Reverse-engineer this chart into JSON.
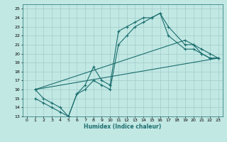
{
  "xlabel": "Humidex (Indice chaleur)",
  "xlim": [
    -0.5,
    23.5
  ],
  "ylim": [
    13,
    25.5
  ],
  "xticks": [
    0,
    1,
    2,
    3,
    4,
    5,
    6,
    7,
    8,
    9,
    10,
    11,
    12,
    13,
    14,
    15,
    16,
    17,
    18,
    19,
    20,
    21,
    22,
    23
  ],
  "yticks": [
    13,
    14,
    15,
    16,
    17,
    18,
    19,
    20,
    21,
    22,
    23,
    24,
    25
  ],
  "bg_color": "#c2e8e4",
  "grid_color": "#a0ccc8",
  "line_color": "#1a6e6e",
  "line1_x": [
    1,
    2,
    3,
    4,
    5,
    6,
    7,
    8,
    9,
    10,
    11,
    12,
    13,
    14,
    15,
    16,
    17,
    19,
    20,
    21,
    22,
    23
  ],
  "line1_y": [
    16,
    15,
    14.5,
    14,
    13,
    15.5,
    16.5,
    18.5,
    17,
    16.5,
    22.5,
    23,
    23.5,
    24,
    24,
    24.5,
    23,
    21,
    21,
    20,
    19.5,
    19.5
  ],
  "line2_x": [
    1,
    2,
    3,
    4,
    5,
    6,
    7,
    8,
    9,
    10,
    11,
    12,
    13,
    14,
    15,
    16,
    17,
    19,
    20,
    21,
    22,
    23
  ],
  "line2_y": [
    15,
    14.5,
    14,
    13.5,
    13,
    15.5,
    16,
    17,
    16.5,
    16,
    21,
    22,
    23,
    23.5,
    24,
    24.5,
    22,
    20.5,
    20.5,
    20,
    19.5,
    19.5
  ],
  "line3_x": [
    1,
    23
  ],
  "line3_y": [
    16,
    19.5
  ],
  "line4_x": [
    1,
    19,
    20,
    21,
    22,
    23
  ],
  "line4_y": [
    16,
    21.5,
    21,
    20.5,
    20,
    19.5
  ]
}
